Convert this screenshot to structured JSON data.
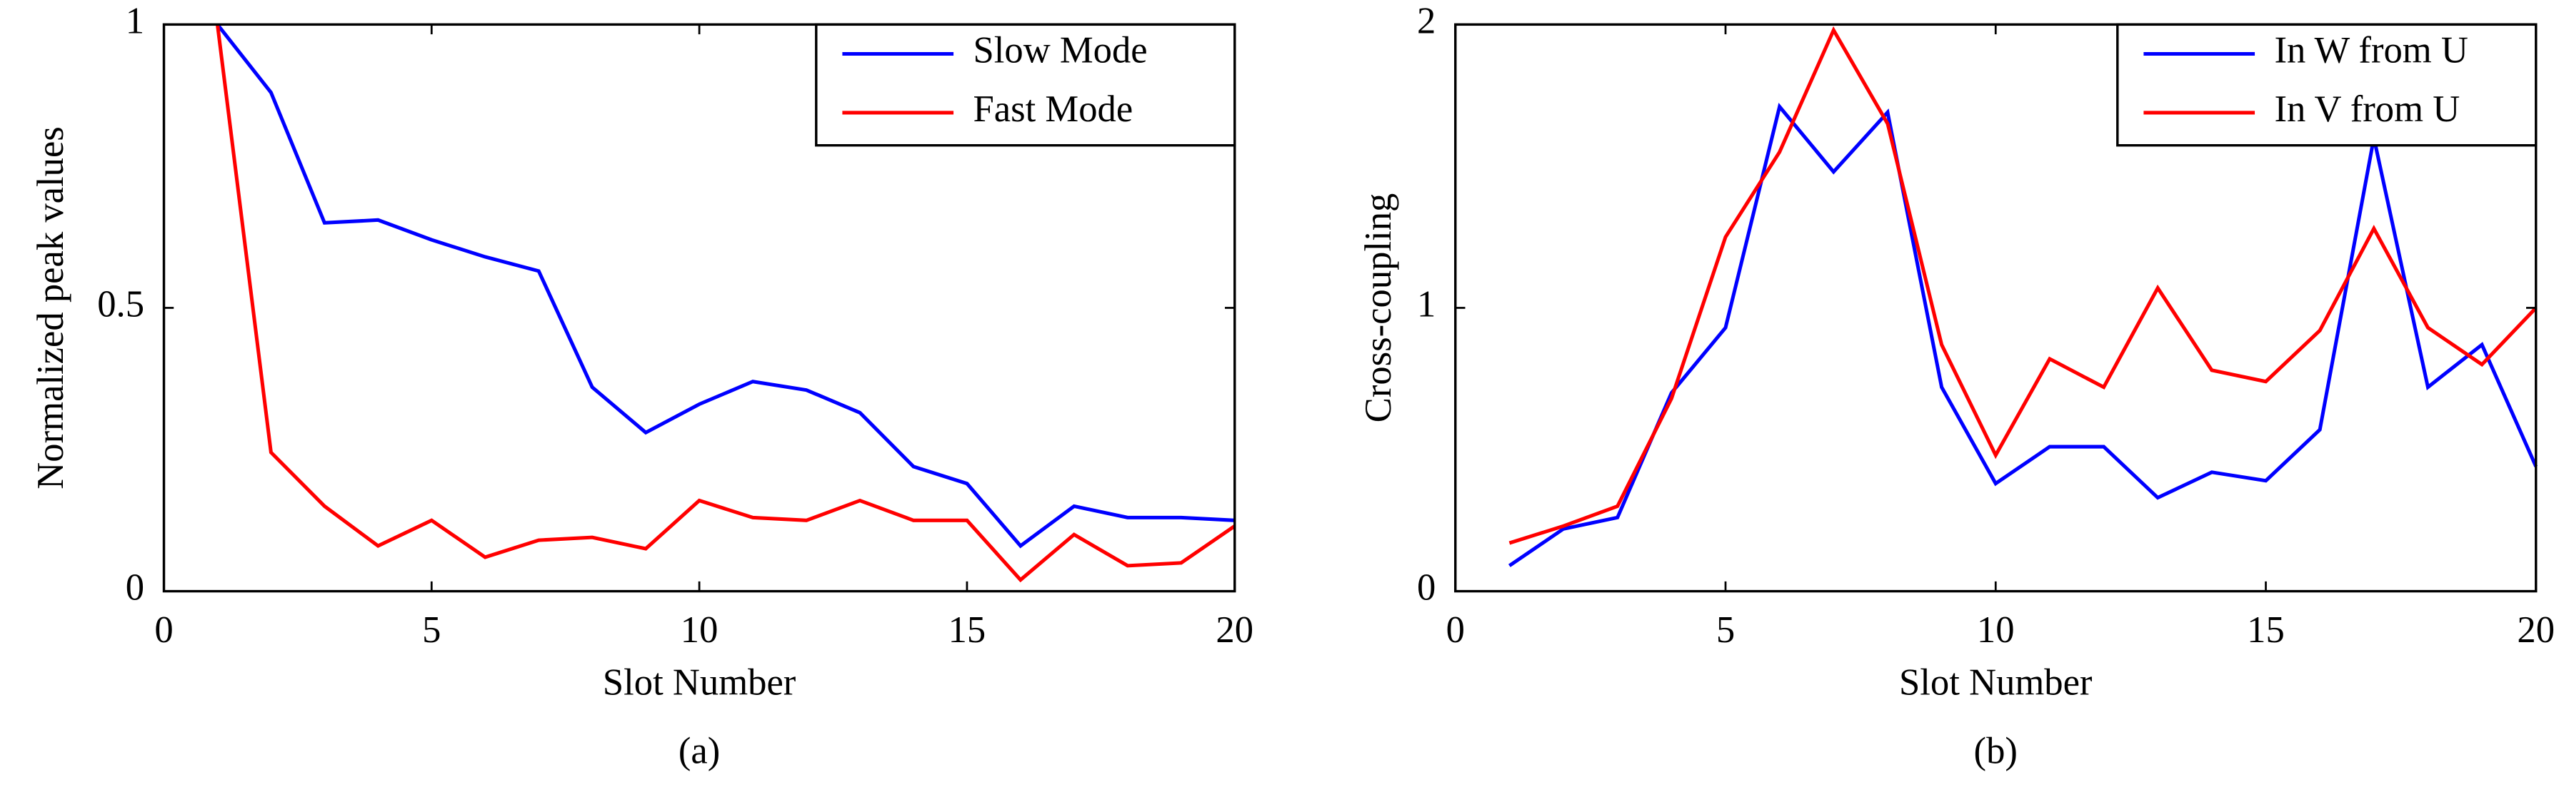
{
  "chart_data": [
    {
      "type": "line",
      "caption": "(a)",
      "x_label": "Slot Number",
      "y_label": "Normalized peak values",
      "x": [
        1,
        2,
        3,
        4,
        5,
        6,
        7,
        8,
        9,
        10,
        11,
        12,
        13,
        14,
        15,
        16,
        17,
        18,
        19,
        20
      ],
      "series": [
        {
          "name": "Slow Mode",
          "color": "#0000ff",
          "values": [
            1.0,
            0.88,
            0.65,
            0.655,
            0.62,
            0.59,
            0.565,
            0.36,
            0.28,
            0.33,
            0.37,
            0.355,
            0.315,
            0.22,
            0.19,
            0.08,
            0.15,
            0.13,
            0.13,
            0.125
          ]
        },
        {
          "name": "Fast Mode",
          "color": "#ff0000",
          "values": [
            1.0,
            0.245,
            0.15,
            0.08,
            0.125,
            0.06,
            0.09,
            0.095,
            0.075,
            0.16,
            0.13,
            0.125,
            0.16,
            0.125,
            0.125,
            0.02,
            0.1,
            0.045,
            0.05,
            0.115
          ]
        }
      ],
      "xlim": [
        0,
        20
      ],
      "xticks": [
        0,
        5,
        10,
        15,
        20
      ],
      "ylim": [
        0,
        1
      ],
      "yticks": [
        0,
        0.5,
        1
      ],
      "legend": "upper-right"
    },
    {
      "type": "line",
      "caption": "(b)",
      "x_label": "Slot Number",
      "y_label": "Cross-coupling",
      "x": [
        1,
        2,
        3,
        4,
        5,
        6,
        7,
        8,
        9,
        10,
        11,
        12,
        13,
        14,
        15,
        16,
        17,
        18,
        19,
        20
      ],
      "series": [
        {
          "name": "In W from U",
          "color": "#0000ff",
          "values": [
            0.09,
            0.22,
            0.26,
            0.7,
            0.93,
            1.71,
            1.48,
            1.69,
            0.72,
            0.38,
            0.51,
            0.51,
            0.33,
            0.42,
            0.39,
            0.57,
            1.6,
            0.72,
            0.87,
            0.44
          ]
        },
        {
          "name": "In V from U",
          "color": "#ff0000",
          "values": [
            0.17,
            0.23,
            0.3,
            0.68,
            1.25,
            1.55,
            1.98,
            1.65,
            0.87,
            0.48,
            0.82,
            0.72,
            1.07,
            0.78,
            0.74,
            0.92,
            1.28,
            0.93,
            0.8,
            1.0
          ]
        }
      ],
      "xlim": [
        0,
        20
      ],
      "xticks": [
        0,
        5,
        10,
        15,
        20
      ],
      "ylim": [
        0,
        2
      ],
      "yticks": [
        0,
        1,
        2
      ],
      "legend": "upper-right"
    }
  ]
}
